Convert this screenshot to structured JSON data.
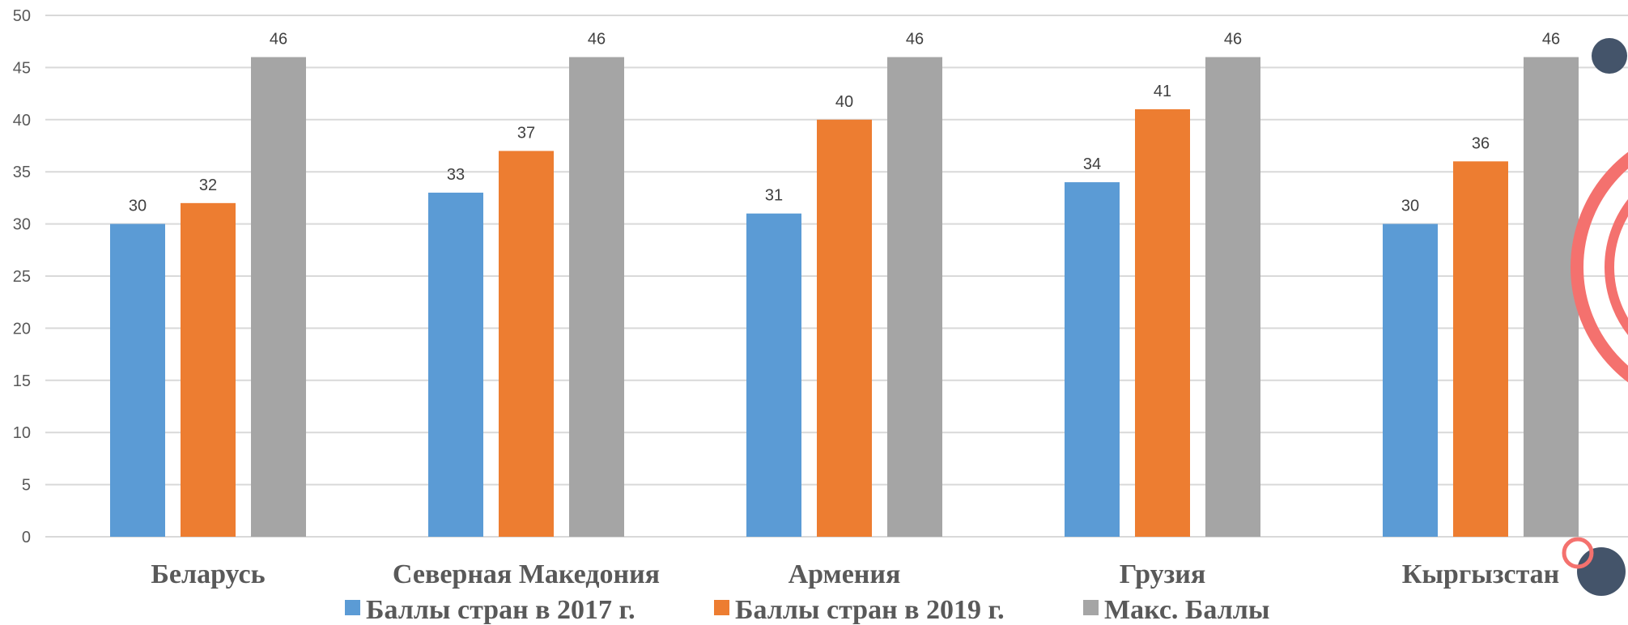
{
  "chart_data": {
    "type": "bar",
    "categories": [
      "Беларусь",
      "Северная Македония",
      "Армения",
      "Грузия",
      "Кыргызстан"
    ],
    "series": [
      {
        "name": "Баллы стран в 2017 г.",
        "color": "#5b9bd5",
        "values": [
          30,
          33,
          31,
          34,
          30
        ]
      },
      {
        "name": "Баллы стран в 2019 г.",
        "color": "#ed7d31",
        "values": [
          32,
          37,
          40,
          41,
          36
        ]
      },
      {
        "name": "Макс. Баллы",
        "color": "#a5a5a5",
        "values": [
          46,
          46,
          46,
          46,
          46
        ]
      }
    ],
    "ylim": [
      0,
      50
    ],
    "yticks": [
      0,
      5,
      10,
      15,
      20,
      25,
      30,
      35,
      40,
      45,
      50
    ],
    "grid": true,
    "legend_position": "bottom"
  }
}
